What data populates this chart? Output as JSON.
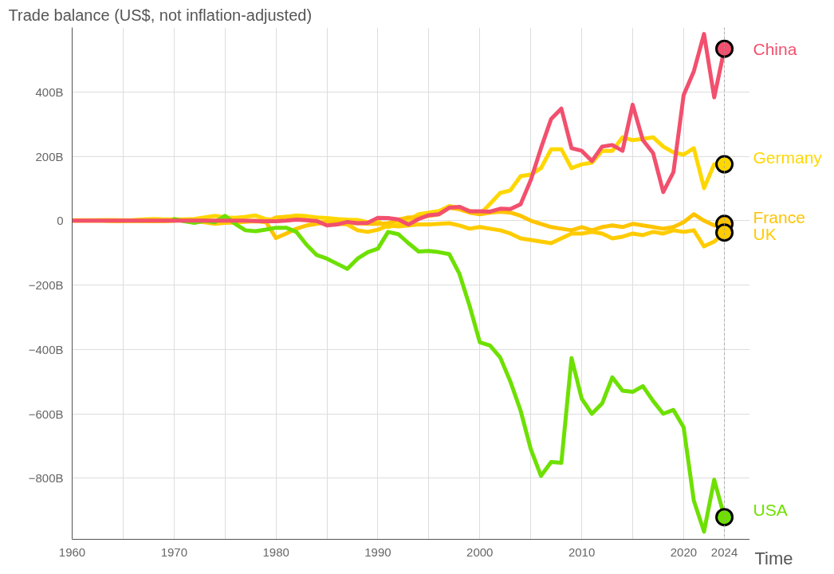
{
  "chart_data": {
    "type": "line",
    "title": "Trade balance (US$, not inflation-adjusted)",
    "xlabel": "Time",
    "x": [
      1960,
      1961,
      1962,
      1963,
      1964,
      1965,
      1966,
      1967,
      1968,
      1969,
      1970,
      1971,
      1972,
      1973,
      1974,
      1975,
      1976,
      1977,
      1978,
      1979,
      1980,
      1981,
      1982,
      1983,
      1984,
      1985,
      1986,
      1987,
      1988,
      1989,
      1990,
      1991,
      1992,
      1993,
      1994,
      1995,
      1996,
      1997,
      1998,
      1999,
      2000,
      2001,
      2002,
      2003,
      2004,
      2005,
      2006,
      2007,
      2008,
      2009,
      2010,
      2011,
      2012,
      2013,
      2014,
      2015,
      2016,
      2017,
      2018,
      2019,
      2020,
      2021,
      2022,
      2023,
      2024
    ],
    "series": [
      {
        "name": "China",
        "color": "#f2506e",
        "values": [
          0,
          0,
          0,
          0,
          0,
          0,
          0,
          0,
          0,
          0,
          0,
          0,
          0,
          0,
          0,
          0,
          0,
          0,
          -1,
          -2,
          -2,
          0,
          3,
          1,
          -1,
          -15,
          -12,
          -4,
          -8,
          -7,
          9,
          8,
          4,
          -12,
          5,
          17,
          20,
          40,
          43,
          29,
          29,
          28,
          37,
          36,
          51,
          126,
          225,
          316,
          348,
          225,
          217,
          185,
          230,
          235,
          217,
          360,
          250,
          210,
          89,
          151,
          390,
          464,
          580,
          383,
          534
        ]
      },
      {
        "name": "Germany",
        "color": "#ffd700",
        "values": [
          1,
          1,
          1,
          2,
          2,
          1,
          2,
          4,
          5,
          4,
          4,
          4,
          5,
          10,
          15,
          10,
          9,
          12,
          16,
          5,
          2,
          12,
          16,
          14,
          10,
          8,
          5,
          3,
          2,
          -5,
          -3,
          -20,
          -10,
          2,
          20,
          25,
          30,
          45,
          40,
          30,
          20,
          52,
          86,
          94,
          138,
          143,
          163,
          222,
          222,
          163,
          175,
          180,
          217,
          217,
          259,
          250,
          254,
          259,
          230,
          212,
          205,
          225,
          101,
          175,
          175
        ]
      },
      {
        "name": "France",
        "color": "#ffc400",
        "values": [
          0,
          0,
          0,
          0,
          -1,
          -1,
          0,
          -1,
          -1,
          -1,
          0,
          1,
          2,
          -1,
          -6,
          1,
          -5,
          -3,
          0,
          -3,
          -54,
          -40,
          -25,
          -15,
          -10,
          -5,
          -5,
          -8,
          -8,
          -10,
          -10,
          -8,
          3,
          10,
          10,
          15,
          20,
          40,
          35,
          25,
          20,
          25,
          28,
          25,
          15,
          0,
          -10,
          -20,
          -25,
          -30,
          -20,
          -30,
          -20,
          -15,
          -20,
          -10,
          -15,
          -20,
          -25,
          -20,
          -5,
          20,
          0,
          -15,
          -10
        ]
      },
      {
        "name": "UK",
        "color": "#ffcc00",
        "values": [
          0,
          0,
          0,
          0,
          -1,
          -1,
          -1,
          -1,
          -2,
          -1,
          0,
          1,
          -1,
          -5,
          -10,
          -7,
          -6,
          -3,
          -2,
          -5,
          10,
          12,
          8,
          2,
          -5,
          -5,
          -10,
          -12,
          -30,
          -35,
          -28,
          -15,
          -18,
          -15,
          -12,
          -12,
          -10,
          -8,
          -15,
          -25,
          -20,
          -25,
          -30,
          -40,
          -55,
          -60,
          -65,
          -70,
          -55,
          -40,
          -40,
          -35,
          -40,
          -55,
          -50,
          -40,
          -45,
          -35,
          -40,
          -30,
          -35,
          -30,
          -80,
          -65,
          -37
        ]
      },
      {
        "name": "USA",
        "color": "#6ee000",
        "values": [
          null,
          null,
          null,
          null,
          null,
          null,
          null,
          null,
          null,
          null,
          5,
          -2,
          -7,
          0,
          -5,
          15,
          -10,
          -30,
          -33,
          -28,
          -22,
          -22,
          -35,
          -75,
          -107,
          -118,
          -134,
          -150,
          -118,
          -98,
          -87,
          -35,
          -42,
          -70,
          -96,
          -94,
          -98,
          -104,
          -165,
          -265,
          -378,
          -388,
          -425,
          -500,
          -590,
          -710,
          -793,
          -750,
          -752,
          -427,
          -553,
          -600,
          -568,
          -487,
          -528,
          -532,
          -514,
          -560,
          -600,
          -588,
          -642,
          -870,
          -966,
          -805,
          -921
        ]
      }
    ],
    "xlim": [
      1960,
      2026.5
    ],
    "ylim": [
      -990,
      600
    ],
    "xticks": [
      1960,
      {
        "value": 1965,
        "label": null
      },
      1970,
      {
        "value": 1975,
        "label": null
      },
      1980,
      {
        "value": 1985,
        "label": null
      },
      1990,
      {
        "value": 1995,
        "label": null
      },
      2000,
      {
        "value": 2005,
        "label": null
      },
      2010,
      {
        "value": 2015,
        "label": null
      },
      2020,
      2024
    ],
    "yticks": [
      {
        "value": -800,
        "label": "−800B"
      },
      {
        "value": -600,
        "label": "−600B"
      },
      {
        "value": -400,
        "label": "−400B"
      },
      {
        "value": -200,
        "label": "−200B"
      },
      {
        "value": 0,
        "label": "0"
      },
      {
        "value": 200,
        "label": "200B"
      },
      {
        "value": 400,
        "label": "400B"
      }
    ],
    "ref_lines": [
      {
        "axis": "x",
        "value": 2024,
        "label": null,
        "color": "#999999",
        "line_style": "dotted"
      }
    ],
    "grid": true,
    "legend": false,
    "marker": "none",
    "line_style": "solid"
  }
}
